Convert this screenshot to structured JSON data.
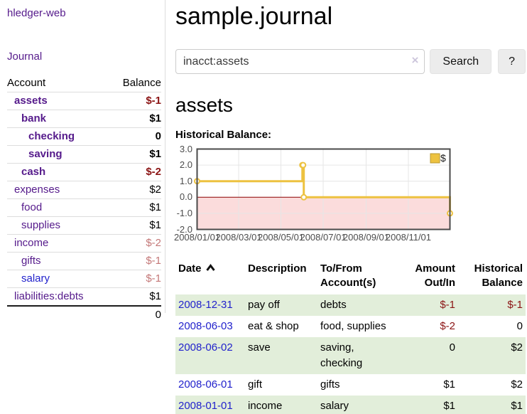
{
  "colors": {
    "purple": "#551a8b",
    "blue": "#2222cc",
    "negStrong": "#8b1414",
    "negMuted": "#c47878",
    "stripe": "#e2eeda"
  },
  "app": {
    "brand": "hledger-web",
    "nav_journal": "Journal"
  },
  "sidebar": {
    "header": {
      "account": "Account",
      "balance": "Balance"
    },
    "accounts": [
      {
        "name": "assets",
        "depth": 1,
        "bold": true,
        "balance": "$-1",
        "balance_style": "neg-strong",
        "link_color": "purple"
      },
      {
        "name": "bank",
        "depth": 2,
        "bold": true,
        "balance": "$1",
        "balance_style": "pos",
        "link_color": "purple"
      },
      {
        "name": "checking",
        "depth": 3,
        "bold": true,
        "balance": "0",
        "balance_style": "pos",
        "link_color": "purple"
      },
      {
        "name": "saving",
        "depth": 3,
        "bold": true,
        "balance": "$1",
        "balance_style": "pos",
        "link_color": "purple"
      },
      {
        "name": "cash",
        "depth": 2,
        "bold": true,
        "balance": "$-2",
        "balance_style": "neg-strong",
        "link_color": "purple"
      },
      {
        "name": "expenses",
        "depth": 1,
        "bold": false,
        "balance": "$2",
        "balance_style": "pos",
        "link_color": "purple"
      },
      {
        "name": "food",
        "depth": 2,
        "bold": false,
        "balance": "$1",
        "balance_style": "pos",
        "link_color": "purple"
      },
      {
        "name": "supplies",
        "depth": 2,
        "bold": false,
        "balance": "$1",
        "balance_style": "pos",
        "link_color": "purple"
      },
      {
        "name": "income",
        "depth": 1,
        "bold": false,
        "balance": "$-2",
        "balance_style": "neg-muted",
        "link_color": "purple"
      },
      {
        "name": "gifts",
        "depth": 2,
        "bold": false,
        "balance": "$-1",
        "balance_style": "neg-muted",
        "link_color": "purple"
      },
      {
        "name": "salary",
        "depth": 2,
        "bold": false,
        "balance": "$-1",
        "balance_style": "neg-muted",
        "link_color": "blue"
      },
      {
        "name": "liabilities:debts",
        "depth": 1,
        "bold": false,
        "balance": "$1",
        "balance_style": "pos",
        "link_color": "purple"
      }
    ],
    "total": "0"
  },
  "header": {
    "title": "sample.journal"
  },
  "search": {
    "query": "inacct:assets",
    "clear_icon": "×",
    "search_label": "Search",
    "help_label": "?"
  },
  "account_page": {
    "title": "assets",
    "chart_label": "Historical Balance:"
  },
  "chart_data": {
    "type": "line",
    "steps": true,
    "title": "Historical Balance:",
    "ylim": [
      -2,
      3
    ],
    "x_range": [
      "2008-01-01",
      "2008-12-31"
    ],
    "y_ticks": [
      {
        "value": 3,
        "label": "3.0"
      },
      {
        "value": 2,
        "label": "2.0"
      },
      {
        "value": 1,
        "label": "1.0"
      },
      {
        "value": 0,
        "label": "0.0"
      },
      {
        "value": -1,
        "label": "-1.0"
      },
      {
        "value": -2,
        "label": "-2.0"
      }
    ],
    "x_ticks": [
      {
        "date": "2008-01-01",
        "label": "2008/01/01"
      },
      {
        "date": "2008-03-01",
        "label": "2008/03/01"
      },
      {
        "date": "2008-05-01",
        "label": "2008/05/01"
      },
      {
        "date": "2008-07-01",
        "label": "2008/07/01"
      },
      {
        "date": "2008-09-01",
        "label": "2008/09/01"
      },
      {
        "date": "2008-11-01",
        "label": "2008/11/01"
      }
    ],
    "grid": true,
    "legend": {
      "position": "top-right"
    },
    "zero_line_color": "#8b0000",
    "negative_region_color": "#fbdcdc",
    "grid_color": "#e6e6e6",
    "border_color": "#4a4a4a",
    "series": [
      {
        "name": "$",
        "color": "#edc240",
        "points": [
          {
            "date": "2008-01-01",
            "value": 1
          },
          {
            "date": "2008-06-01",
            "value": 2
          },
          {
            "date": "2008-06-02",
            "value": 2
          },
          {
            "date": "2008-06-03",
            "value": 0
          },
          {
            "date": "2008-12-31",
            "value": -1
          }
        ]
      }
    ]
  },
  "register": {
    "columns": {
      "date": "Date",
      "description": "Description",
      "tofrom_line1": "To/From",
      "tofrom_line2": "Account(s)",
      "amount_line1": "Amount",
      "amount_line2": "Out/In",
      "balance_line1": "Historical",
      "balance_line2": "Balance"
    },
    "rows": [
      {
        "date": "2008-12-31",
        "description": "pay off",
        "accounts": [
          "debts"
        ],
        "amount": "$-1",
        "amount_negative": true,
        "balance": "$-1",
        "balance_negative": true
      },
      {
        "date": "2008-06-03",
        "description": "eat & shop",
        "accounts": [
          "food",
          "supplies"
        ],
        "amount": "$-2",
        "amount_negative": true,
        "balance": "0",
        "balance_negative": false
      },
      {
        "date": "2008-06-02",
        "description": "save",
        "accounts": [
          "saving",
          "checking"
        ],
        "amount": "0",
        "amount_negative": false,
        "balance": "$2",
        "balance_negative": false
      },
      {
        "date": "2008-06-01",
        "description": "gift",
        "accounts": [
          "gifts"
        ],
        "amount": "$1",
        "amount_negative": false,
        "balance": "$2",
        "balance_negative": false
      },
      {
        "date": "2008-01-01",
        "description": "income",
        "accounts": [
          "salary"
        ],
        "amount": "$1",
        "amount_negative": false,
        "balance": "$1",
        "balance_negative": false
      }
    ]
  }
}
